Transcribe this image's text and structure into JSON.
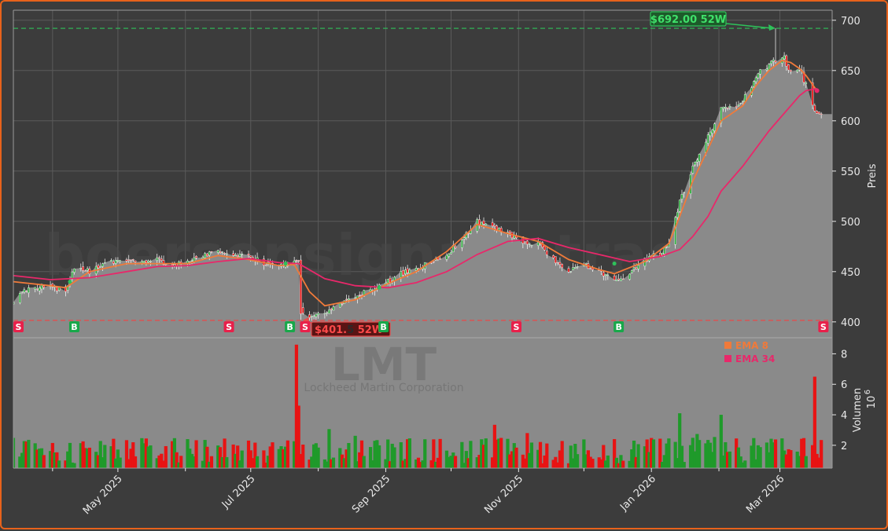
{
  "chart_data": [
    {
      "type": "candlestick",
      "ticker": "LMT",
      "company": "Lockheed Martin Corporation",
      "watermark": "boersensignale.trade",
      "ylabel": "Preis",
      "ylim": [
        385,
        710
      ],
      "yticks": [
        "400",
        "450",
        "500",
        "550",
        "600",
        "650",
        "700"
      ],
      "date_range": [
        "2025-03-14",
        "2026-03-20"
      ],
      "xticks": [
        "May 2025",
        "Jul 2025",
        "Sep 2025",
        "Nov 2025",
        "Jan 2026",
        "Mar 2026"
      ],
      "grid": true,
      "close_path": [
        [
          "2025-03-14",
          422
        ],
        [
          "2025-03-20",
          432
        ],
        [
          "2025-03-31",
          437
        ],
        [
          "2025-04-07",
          428
        ],
        [
          "2025-04-11",
          455
        ],
        [
          "2025-04-18",
          450
        ],
        [
          "2025-04-25",
          458
        ],
        [
          "2025-05-05",
          462
        ],
        [
          "2025-05-12",
          458
        ],
        [
          "2025-05-19",
          462
        ],
        [
          "2025-05-26",
          455
        ],
        [
          "2025-06-02",
          460
        ],
        [
          "2025-06-09",
          465
        ],
        [
          "2025-06-16",
          470
        ],
        [
          "2025-06-23",
          468
        ],
        [
          "2025-06-30",
          466
        ],
        [
          "2025-07-07",
          458
        ],
        [
          "2025-07-14",
          455
        ],
        [
          "2025-07-21",
          460
        ],
        [
          "2025-07-23",
          458
        ],
        [
          "2025-07-24",
          412
        ],
        [
          "2025-07-28",
          406
        ],
        [
          "2025-08-04",
          408
        ],
        [
          "2025-08-11",
          418
        ],
        [
          "2025-08-18",
          425
        ],
        [
          "2025-08-25",
          432
        ],
        [
          "2025-09-02",
          440
        ],
        [
          "2025-09-08",
          448
        ],
        [
          "2025-09-15",
          452
        ],
        [
          "2025-09-22",
          460
        ],
        [
          "2025-09-29",
          468
        ],
        [
          "2025-10-06",
          482
        ],
        [
          "2025-10-13",
          500
        ],
        [
          "2025-10-20",
          495
        ],
        [
          "2025-10-27",
          488
        ],
        [
          "2025-11-03",
          480
        ],
        [
          "2025-11-10",
          478
        ],
        [
          "2025-11-17",
          462
        ],
        [
          "2025-11-24",
          450
        ],
        [
          "2025-12-01",
          458
        ],
        [
          "2025-12-08",
          450
        ],
        [
          "2025-12-15",
          440
        ],
        [
          "2025-12-22",
          448
        ],
        [
          "2025-12-29",
          462
        ],
        [
          "2026-01-05",
          468
        ],
        [
          "2026-01-09",
          478
        ],
        [
          "2026-01-14",
          520
        ],
        [
          "2026-01-20",
          555
        ],
        [
          "2026-01-27",
          585
        ],
        [
          "2026-02-02",
          610
        ],
        [
          "2026-02-06",
          612
        ],
        [
          "2026-02-12",
          620
        ],
        [
          "2026-02-18",
          645
        ],
        [
          "2026-02-24",
          655
        ],
        [
          "2026-03-02",
          665
        ],
        [
          "2026-03-06",
          650
        ],
        [
          "2026-03-10",
          652
        ],
        [
          "2026-03-13",
          635
        ],
        [
          "2026-03-16",
          618
        ],
        [
          "2026-03-18",
          605
        ],
        [
          "2026-03-20",
          605
        ]
      ],
      "series": [
        {
          "name": "EMA 8",
          "color": "#f07a3a",
          "values": [
            [
              "2025-03-14",
              440
            ],
            [
              "2025-03-31",
              436
            ],
            [
              "2025-04-07",
              434
            ],
            [
              "2025-04-18",
              450
            ],
            [
              "2025-05-05",
              458
            ],
            [
              "2025-05-19",
              458
            ],
            [
              "2025-06-02",
              458
            ],
            [
              "2025-06-16",
              466
            ],
            [
              "2025-06-30",
              462
            ],
            [
              "2025-07-14",
              456
            ],
            [
              "2025-07-21",
              457
            ],
            [
              "2025-07-28",
              430
            ],
            [
              "2025-08-04",
              416
            ],
            [
              "2025-08-18",
              422
            ],
            [
              "2025-09-02",
              438
            ],
            [
              "2025-09-15",
              450
            ],
            [
              "2025-09-29",
              470
            ],
            [
              "2025-10-13",
              497
            ],
            [
              "2025-10-27",
              488
            ],
            [
              "2025-11-10",
              480
            ],
            [
              "2025-11-24",
              462
            ],
            [
              "2025-12-08",
              452
            ],
            [
              "2025-12-15",
              448
            ],
            [
              "2025-12-29",
              460
            ],
            [
              "2026-01-09",
              478
            ],
            [
              "2026-01-14",
              505
            ],
            [
              "2026-01-20",
              540
            ],
            [
              "2026-01-27",
              572
            ],
            [
              "2026-02-02",
              600
            ],
            [
              "2026-02-12",
              615
            ],
            [
              "2026-02-18",
              635
            ],
            [
              "2026-02-24",
              650
            ],
            [
              "2026-03-02",
              660
            ],
            [
              "2026-03-06",
              658
            ],
            [
              "2026-03-10",
              652
            ],
            [
              "2026-03-13",
              645
            ],
            [
              "2026-03-18",
              630
            ]
          ]
        },
        {
          "name": "EMA 34",
          "color": "#e8286a",
          "values": [
            [
              "2025-03-14",
              446
            ],
            [
              "2025-03-31",
              442
            ],
            [
              "2025-04-18",
              444
            ],
            [
              "2025-05-05",
              450
            ],
            [
              "2025-05-19",
              455
            ],
            [
              "2025-06-02",
              456
            ],
            [
              "2025-06-16",
              460
            ],
            [
              "2025-06-30",
              463
            ],
            [
              "2025-07-14",
              459
            ],
            [
              "2025-07-23",
              458
            ],
            [
              "2025-08-04",
              443
            ],
            [
              "2025-08-18",
              436
            ],
            [
              "2025-09-02",
              434
            ],
            [
              "2025-09-15",
              439
            ],
            [
              "2025-09-29",
              450
            ],
            [
              "2025-10-13",
              467
            ],
            [
              "2025-10-27",
              480
            ],
            [
              "2025-11-10",
              483
            ],
            [
              "2025-11-24",
              474
            ],
            [
              "2025-12-08",
              467
            ],
            [
              "2025-12-22",
              460
            ],
            [
              "2026-01-05",
              465
            ],
            [
              "2026-01-14",
              472
            ],
            [
              "2026-01-20",
              485
            ],
            [
              "2026-01-27",
              505
            ],
            [
              "2026-02-02",
              530
            ],
            [
              "2026-02-12",
              555
            ],
            [
              "2026-02-24",
              590
            ],
            [
              "2026-03-02",
              605
            ],
            [
              "2026-03-06",
              615
            ],
            [
              "2026-03-10",
              625
            ],
            [
              "2026-03-13",
              630
            ],
            [
              "2026-03-18",
              632
            ]
          ]
        }
      ],
      "annotations": {
        "high_52w": {
          "label": "$692.00 52W",
          "value": 692.0,
          "date": "2026-02-27",
          "color": "#2ec25a"
        },
        "low_52w": {
          "label": "$401.",
          "label_hidden": "5",
          "label_end": " 52W",
          "value": 401.5,
          "date": "2025-07-24",
          "color": "#e84a4a"
        }
      },
      "signals": [
        {
          "type": "S",
          "date": "2025-03-14"
        },
        {
          "type": "B",
          "date": "2025-04-09"
        },
        {
          "type": "S",
          "date": "2025-06-19"
        },
        {
          "type": "B",
          "date": "2025-07-17"
        },
        {
          "type": "S",
          "date": "2025-07-24"
        },
        {
          "type": "B",
          "date": "2025-08-29"
        },
        {
          "type": "S",
          "date": "2025-10-29"
        },
        {
          "type": "B",
          "date": "2025-12-15"
        },
        {
          "type": "S",
          "date": "2026-03-19"
        }
      ],
      "legend": {
        "placement": "top-right",
        "items": [
          {
            "label": "EMA 8",
            "color": "#f07a3a"
          },
          {
            "label": "EMA 34",
            "color": "#e8286a"
          }
        ]
      },
      "colors": {
        "up": "#1f9a2a",
        "down": "#e81313",
        "background": "#3c3c3c",
        "area": "#888888",
        "border": "#e8621b"
      }
    },
    {
      "type": "bar",
      "ylabel": "Volumen",
      "yunit": "10",
      "yunit_exp": "6",
      "ylim": [
        0.5,
        9.0
      ],
      "yticks": [
        "2",
        "4",
        "6",
        "8"
      ],
      "notable_values": [
        {
          "date": "2025-07-22",
          "value": 8.6
        },
        {
          "date": "2025-07-23",
          "value": 4.6
        },
        {
          "date": "2026-03-17",
          "value": 6.5
        },
        {
          "date": "2026-01-14",
          "value": 4.1
        },
        {
          "date": "2026-02-02",
          "value": 4.0
        }
      ],
      "typical_range": [
        0.8,
        2.5
      ]
    }
  ]
}
